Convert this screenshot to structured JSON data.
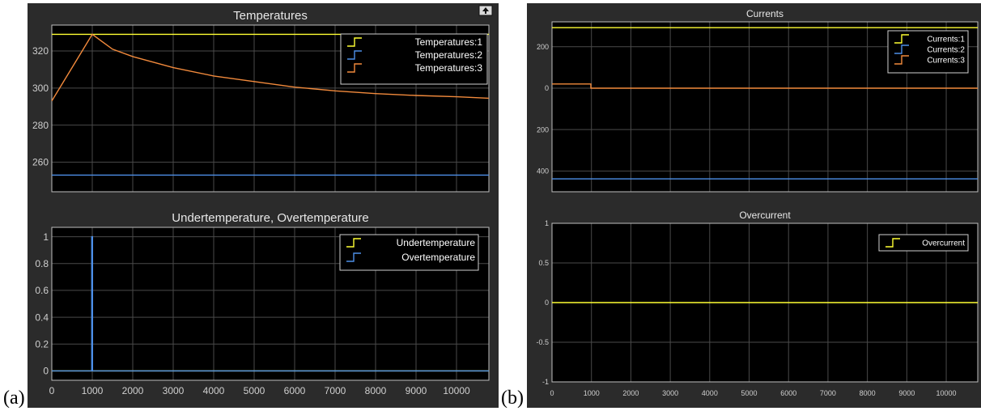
{
  "panel_labels": {
    "a": "(a)",
    "b": "(b)"
  },
  "colors": {
    "window_bg": "#2b2b2b",
    "axes_bg": "#000000",
    "grid": "#4a4a4a",
    "axis_line": "#bfbfbf",
    "text": "#dcdcdc",
    "series_yellow": "#ffff33",
    "series_blue": "#4d8fe8",
    "series_orange": "#f28a3c"
  },
  "chart_data": [
    {
      "id": "temperatures",
      "type": "line",
      "title": "Temperatures",
      "xlim": [
        0,
        10800
      ],
      "ylim": [
        244,
        334
      ],
      "x_ticks": [],
      "y_ticks": [
        260,
        280,
        300,
        320
      ],
      "grid": true,
      "legend_placement": "top-right",
      "series": [
        {
          "name": "Temperatures:1",
          "color": "#ffff33",
          "x": [
            0,
            10800
          ],
          "y": [
            329,
            329
          ]
        },
        {
          "name": "Temperatures:2",
          "color": "#4d8fe8",
          "x": [
            0,
            10800
          ],
          "y": [
            253,
            253
          ]
        },
        {
          "name": "Temperatures:3",
          "color": "#f28a3c",
          "x": [
            0,
            500,
            1000,
            1500,
            2000,
            3000,
            4000,
            5000,
            6000,
            7000,
            8000,
            9000,
            10000,
            10800
          ],
          "y": [
            293,
            311,
            329,
            321,
            317,
            311,
            306.5,
            303.5,
            300.5,
            298.5,
            297,
            296,
            295.3,
            294.5
          ]
        }
      ]
    },
    {
      "id": "undertemperature",
      "type": "line",
      "title": "Undertemperature, Overtemperature",
      "xlim": [
        0,
        10800
      ],
      "ylim": [
        -0.07,
        1.07
      ],
      "x_ticks": [
        0,
        1000,
        2000,
        3000,
        4000,
        5000,
        6000,
        7000,
        8000,
        9000,
        10000
      ],
      "y_ticks": [
        0,
        0.2,
        0.4,
        0.6,
        0.8,
        1
      ],
      "grid": true,
      "legend_placement": "top-right",
      "series": [
        {
          "name": "Undertemperature",
          "color": "#ffff33",
          "x": [
            0,
            10800
          ],
          "y": [
            0,
            0
          ]
        },
        {
          "name": "Overtemperature",
          "color": "#4d8fe8",
          "x": [
            0,
            985,
            985,
            1005,
            1005,
            10800
          ],
          "y": [
            0,
            0,
            1,
            1,
            0,
            0
          ]
        }
      ]
    },
    {
      "id": "currents",
      "type": "line",
      "title": "Currents",
      "xlim": [
        0,
        10800
      ],
      "ylim": [
        -500,
        320
      ],
      "x_ticks": [],
      "y_ticks": [
        200,
        0,
        -200,
        -400
      ],
      "y_tick_labels": [
        "200",
        "0",
        "200",
        "400"
      ],
      "grid": true,
      "legend_placement": "top-right",
      "series": [
        {
          "name": "Currents:1",
          "color": "#ffff33",
          "x": [
            0,
            10800
          ],
          "y": [
            292,
            292
          ]
        },
        {
          "name": "Currents:2",
          "color": "#4d8fe8",
          "x": [
            0,
            10800
          ],
          "y": [
            -438,
            -438
          ]
        },
        {
          "name": "Currents:3",
          "color": "#f28a3c",
          "x": [
            0,
            985,
            985,
            10800
          ],
          "y": [
            20,
            20,
            0,
            0
          ]
        }
      ]
    },
    {
      "id": "overcurrent",
      "type": "line",
      "title": "Overcurrent",
      "xlim": [
        0,
        10800
      ],
      "ylim": [
        -1,
        1
      ],
      "x_ticks": [
        0,
        1000,
        2000,
        3000,
        4000,
        5000,
        6000,
        7000,
        8000,
        9000,
        10000
      ],
      "y_ticks": [
        1,
        0.5,
        0,
        -0.5,
        -1
      ],
      "grid": true,
      "legend_placement": "top-right",
      "series": [
        {
          "name": "Overcurrent",
          "color": "#ffff33",
          "x": [
            0,
            10800
          ],
          "y": [
            0,
            0
          ]
        }
      ]
    }
  ]
}
